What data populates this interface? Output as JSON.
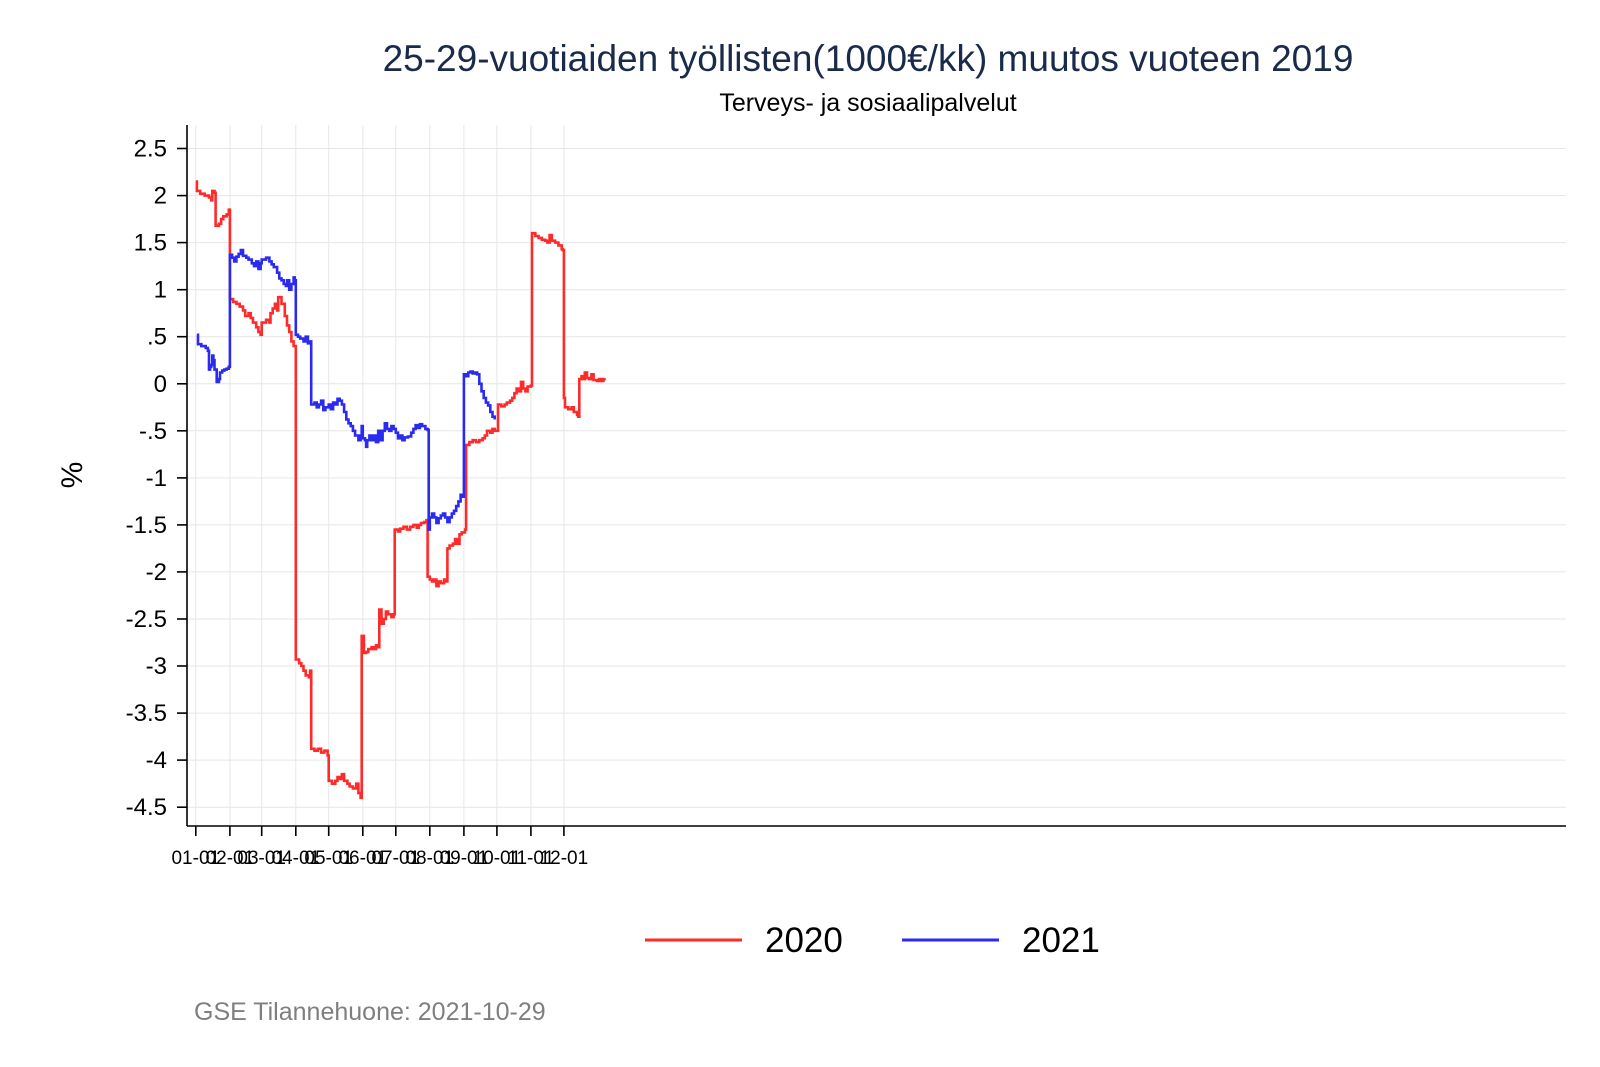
{
  "chart_data": {
    "type": "line",
    "step": true,
    "title": "25-29-vuotiaiden työllisten(1000€/kk) muutos vuoteen 2019",
    "subtitle": "Terveys- ja sosiaalipalvelut",
    "ylabel": "%",
    "xlabel": "",
    "ylim": [
      -4.7,
      2.75
    ],
    "xlim": [
      -8,
      1247
    ],
    "yticks": [
      2.5,
      2,
      1.5,
      1,
      0.5,
      0,
      -0.5,
      -1,
      -1.5,
      -2,
      -2.5,
      -3,
      -3.5,
      -4,
      -4.5
    ],
    "ytick_labels": [
      "2.5",
      "2",
      "1.5",
      "1",
      ".5",
      "0",
      "-.5",
      "-1",
      "-1.5",
      "-2",
      "-2.5",
      "-3",
      "-3.5",
      "-4",
      "-4.5"
    ],
    "xtick_labels": [
      "01-01",
      "02-01",
      "03-01",
      "04-01",
      "05-01",
      "06-01",
      "07-01",
      "08-01",
      "09-01",
      "10-01",
      "11-01",
      "12-01"
    ],
    "xtick_days": [
      0,
      31,
      60,
      91,
      121,
      152,
      182,
      213,
      244,
      274,
      305,
      335
    ],
    "grid": true,
    "legend_position": "bottom",
    "note": "GSE Tilannehuone: 2021-10-29",
    "series": [
      {
        "name": "2020",
        "color": "#ff2a2a",
        "points": [
          [
            0,
            2.15
          ],
          [
            1,
            2.05
          ],
          [
            4,
            2.02
          ],
          [
            8,
            2.0
          ],
          [
            12,
            1.98
          ],
          [
            14,
            1.95
          ],
          [
            15,
            2.05
          ],
          [
            17,
            2.03
          ],
          [
            18,
            1.68
          ],
          [
            21,
            1.7
          ],
          [
            23,
            1.75
          ],
          [
            25,
            1.78
          ],
          [
            28,
            1.8
          ],
          [
            30,
            1.85
          ],
          [
            31,
            0.9
          ],
          [
            34,
            0.87
          ],
          [
            37,
            0.85
          ],
          [
            40,
            0.82
          ],
          [
            43,
            0.78
          ],
          [
            45,
            0.72
          ],
          [
            48,
            0.75
          ],
          [
            50,
            0.7
          ],
          [
            52,
            0.65
          ],
          [
            55,
            0.6
          ],
          [
            57,
            0.55
          ],
          [
            59,
            0.52
          ],
          [
            60,
            0.65
          ],
          [
            64,
            0.68
          ],
          [
            67,
            0.65
          ],
          [
            68,
            0.75
          ],
          [
            70,
            0.8
          ],
          [
            72,
            0.85
          ],
          [
            74,
            0.78
          ],
          [
            75,
            0.92
          ],
          [
            78,
            0.85
          ],
          [
            81,
            0.72
          ],
          [
            83,
            0.62
          ],
          [
            85,
            0.55
          ],
          [
            87,
            0.45
          ],
          [
            89,
            0.4
          ],
          [
            91,
            -2.93
          ],
          [
            94,
            -2.97
          ],
          [
            96,
            -3.0
          ],
          [
            98,
            -3.05
          ],
          [
            100,
            -3.1
          ],
          [
            103,
            -3.12
          ],
          [
            104,
            -3.05
          ],
          [
            105,
            -3.88
          ],
          [
            108,
            -3.9
          ],
          [
            111,
            -3.88
          ],
          [
            114,
            -3.92
          ],
          [
            117,
            -3.9
          ],
          [
            120,
            -3.95
          ],
          [
            121,
            -4.22
          ],
          [
            124,
            -4.25
          ],
          [
            127,
            -4.22
          ],
          [
            129,
            -4.18
          ],
          [
            131,
            -4.2
          ],
          [
            133,
            -4.15
          ],
          [
            135,
            -4.22
          ],
          [
            138,
            -4.25
          ],
          [
            140,
            -4.28
          ],
          [
            143,
            -4.3
          ],
          [
            146,
            -4.25
          ],
          [
            148,
            -4.35
          ],
          [
            150,
            -4.4
          ],
          [
            151,
            -2.68
          ],
          [
            153,
            -2.86
          ],
          [
            155,
            -2.85
          ],
          [
            157,
            -2.82
          ],
          [
            160,
            -2.8
          ],
          [
            162,
            -2.82
          ],
          [
            164,
            -2.78
          ],
          [
            166,
            -2.8
          ],
          [
            167,
            -2.4
          ],
          [
            169,
            -2.55
          ],
          [
            171,
            -2.5
          ],
          [
            173,
            -2.42
          ],
          [
            175,
            -2.45
          ],
          [
            178,
            -2.48
          ],
          [
            180,
            -2.45
          ],
          [
            181,
            -1.55
          ],
          [
            184,
            -1.57
          ],
          [
            186,
            -1.54
          ],
          [
            189,
            -1.52
          ],
          [
            192,
            -1.55
          ],
          [
            195,
            -1.52
          ],
          [
            198,
            -1.5
          ],
          [
            201,
            -1.53
          ],
          [
            203,
            -1.5
          ],
          [
            205,
            -1.48
          ],
          [
            208,
            -1.47
          ],
          [
            210,
            -1.45
          ],
          [
            211,
            -2.05
          ],
          [
            213,
            -2.08
          ],
          [
            215,
            -2.1
          ],
          [
            217,
            -2.08
          ],
          [
            219,
            -2.15
          ],
          [
            221,
            -2.1
          ],
          [
            223,
            -2.12
          ],
          [
            226,
            -2.08
          ],
          [
            228,
            -2.1
          ],
          [
            229,
            -1.75
          ],
          [
            231,
            -1.72
          ],
          [
            234,
            -1.7
          ],
          [
            236,
            -1.65
          ],
          [
            238,
            -1.7
          ],
          [
            240,
            -1.6
          ],
          [
            242,
            -1.58
          ],
          [
            245,
            -1.55
          ],
          [
            246,
            -0.65
          ],
          [
            249,
            -0.62
          ],
          [
            252,
            -0.6
          ],
          [
            255,
            -0.62
          ],
          [
            258,
            -0.6
          ],
          [
            261,
            -0.58
          ],
          [
            263,
            -0.55
          ],
          [
            265,
            -0.5
          ],
          [
            268,
            -0.52
          ],
          [
            270,
            -0.48
          ],
          [
            272,
            -0.5
          ],
          [
            275,
            -0.22
          ],
          [
            278,
            -0.24
          ],
          [
            281,
            -0.22
          ],
          [
            283,
            -0.2
          ],
          [
            286,
            -0.18
          ],
          [
            288,
            -0.15
          ],
          [
            290,
            -0.1
          ],
          [
            292,
            -0.05
          ],
          [
            294,
            -0.08
          ],
          [
            296,
            0.02
          ],
          [
            298,
            -0.05
          ],
          [
            300,
            -0.08
          ],
          [
            302,
            -0.03
          ],
          [
            305,
            -0.02
          ],
          [
            306,
            1.6
          ],
          [
            309,
            1.57
          ],
          [
            312,
            1.55
          ],
          [
            315,
            1.53
          ],
          [
            318,
            1.52
          ],
          [
            320,
            1.5
          ],
          [
            322,
            1.58
          ],
          [
            324,
            1.52
          ],
          [
            327,
            1.5
          ],
          [
            330,
            1.47
          ],
          [
            333,
            1.43
          ],
          [
            334,
            1.42
          ],
          [
            335,
            -0.15
          ],
          [
            336,
            -0.25
          ],
          [
            339,
            -0.27
          ],
          [
            342,
            -0.25
          ],
          [
            344,
            -0.3
          ],
          [
            347,
            -0.33
          ],
          [
            348,
            -0.35
          ],
          [
            349,
            0.05
          ],
          [
            351,
            0.08
          ],
          [
            352,
            0.05
          ],
          [
            354,
            0.12
          ],
          [
            356,
            0.06
          ],
          [
            358,
            0.05
          ],
          [
            360,
            0.1
          ],
          [
            362,
            0.04
          ],
          [
            365,
            0.03
          ],
          [
            367,
            0.05
          ],
          [
            369,
            0.03
          ],
          [
            371,
            0.05
          ],
          [
            372,
            0.06
          ]
        ]
      },
      {
        "name": "2021",
        "color": "#2b2bf0",
        "points": [
          [
            1,
            0.52
          ],
          [
            2,
            0.42
          ],
          [
            5,
            0.4
          ],
          [
            9,
            0.38
          ],
          [
            11,
            0.35
          ],
          [
            12,
            0.15
          ],
          [
            13,
            0.18
          ],
          [
            14,
            0.2
          ],
          [
            15,
            0.3
          ],
          [
            16,
            0.25
          ],
          [
            17,
            0.15
          ],
          [
            19,
            0.02
          ],
          [
            21,
            0.05
          ],
          [
            22,
            0.12
          ],
          [
            24,
            0.14
          ],
          [
            26,
            0.15
          ],
          [
            28,
            0.16
          ],
          [
            30,
            0.18
          ],
          [
            31,
            1.37
          ],
          [
            33,
            1.34
          ],
          [
            35,
            1.3
          ],
          [
            37,
            1.35
          ],
          [
            39,
            1.38
          ],
          [
            41,
            1.42
          ],
          [
            43,
            1.36
          ],
          [
            46,
            1.34
          ],
          [
            48,
            1.32
          ],
          [
            51,
            1.28
          ],
          [
            53,
            1.25
          ],
          [
            55,
            1.3
          ],
          [
            57,
            1.22
          ],
          [
            59,
            1.28
          ],
          [
            60,
            1.32
          ],
          [
            64,
            1.34
          ],
          [
            67,
            1.3
          ],
          [
            69,
            1.27
          ],
          [
            71,
            1.24
          ],
          [
            74,
            1.18
          ],
          [
            76,
            1.12
          ],
          [
            78,
            1.1
          ],
          [
            80,
            1.06
          ],
          [
            82,
            1.04
          ],
          [
            83,
            1.1
          ],
          [
            85,
            1.0
          ],
          [
            87,
            1.06
          ],
          [
            89,
            1.13
          ],
          [
            90,
            1.1
          ],
          [
            91,
            0.52
          ],
          [
            93,
            0.5
          ],
          [
            95,
            0.48
          ],
          [
            98,
            0.45
          ],
          [
            100,
            0.5
          ],
          [
            102,
            0.43
          ],
          [
            104,
            0.45
          ],
          [
            105,
            -0.22
          ],
          [
            108,
            -0.2
          ],
          [
            110,
            -0.25
          ],
          [
            112,
            -0.22
          ],
          [
            114,
            -0.18
          ],
          [
            116,
            -0.28
          ],
          [
            118,
            -0.25
          ],
          [
            120,
            -0.25
          ],
          [
            121,
            -0.22
          ],
          [
            123,
            -0.27
          ],
          [
            125,
            -0.2
          ],
          [
            127,
            -0.22
          ],
          [
            129,
            -0.16
          ],
          [
            131,
            -0.18
          ],
          [
            133,
            -0.22
          ],
          [
            135,
            -0.3
          ],
          [
            137,
            -0.38
          ],
          [
            139,
            -0.42
          ],
          [
            141,
            -0.45
          ],
          [
            143,
            -0.5
          ],
          [
            145,
            -0.55
          ],
          [
            148,
            -0.6
          ],
          [
            150,
            -0.55
          ],
          [
            151,
            -0.45
          ],
          [
            152,
            -0.58
          ],
          [
            154,
            -0.6
          ],
          [
            155,
            -0.67
          ],
          [
            156,
            -0.6
          ],
          [
            158,
            -0.55
          ],
          [
            160,
            -0.6
          ],
          [
            162,
            -0.55
          ],
          [
            164,
            -0.62
          ],
          [
            166,
            -0.5
          ],
          [
            168,
            -0.6
          ],
          [
            170,
            -0.5
          ],
          [
            172,
            -0.42
          ],
          [
            174,
            -0.48
          ],
          [
            176,
            -0.5
          ],
          [
            178,
            -0.45
          ],
          [
            180,
            -0.48
          ],
          [
            182,
            -0.52
          ],
          [
            184,
            -0.58
          ],
          [
            186,
            -0.55
          ],
          [
            188,
            -0.6
          ],
          [
            190,
            -0.57
          ],
          [
            193,
            -0.56
          ],
          [
            196,
            -0.52
          ],
          [
            198,
            -0.48
          ],
          [
            200,
            -0.44
          ],
          [
            202,
            -0.47
          ],
          [
            204,
            -0.43
          ],
          [
            206,
            -0.45
          ],
          [
            209,
            -0.48
          ],
          [
            211,
            -0.49
          ],
          [
            212,
            -1.55
          ],
          [
            213,
            -1.42
          ],
          [
            215,
            -1.38
          ],
          [
            217,
            -1.42
          ],
          [
            219,
            -1.48
          ],
          [
            221,
            -1.43
          ],
          [
            223,
            -1.4
          ],
          [
            225,
            -1.38
          ],
          [
            227,
            -1.42
          ],
          [
            229,
            -1.47
          ],
          [
            231,
            -1.42
          ],
          [
            233,
            -1.38
          ],
          [
            235,
            -1.35
          ],
          [
            237,
            -1.3
          ],
          [
            239,
            -1.25
          ],
          [
            241,
            -1.18
          ],
          [
            243,
            -1.2
          ],
          [
            244,
            0.1
          ],
          [
            246,
            0.08
          ],
          [
            248,
            0.12
          ],
          [
            250,
            0.13
          ],
          [
            252,
            0.11
          ],
          [
            254,
            0.12
          ],
          [
            256,
            0.1
          ],
          [
            258,
            0.0
          ],
          [
            260,
            -0.08
          ],
          [
            262,
            -0.15
          ],
          [
            264,
            -0.2
          ],
          [
            266,
            -0.23
          ],
          [
            268,
            -0.3
          ],
          [
            270,
            -0.35
          ],
          [
            272,
            -0.38
          ]
        ]
      }
    ]
  }
}
